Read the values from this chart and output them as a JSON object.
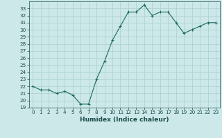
{
  "x": [
    0,
    1,
    2,
    3,
    4,
    5,
    6,
    7,
    8,
    9,
    10,
    11,
    12,
    13,
    14,
    15,
    16,
    17,
    18,
    19,
    20,
    21,
    22,
    23
  ],
  "y": [
    22,
    21.5,
    21.5,
    21,
    21.3,
    20.8,
    19.5,
    19.5,
    23,
    25.5,
    28.5,
    30.5,
    32.5,
    32.5,
    33.5,
    32,
    32.5,
    32.5,
    31,
    29.5,
    30,
    30.5,
    31,
    31
  ],
  "xlabel": "Humidex (Indice chaleur)",
  "ylim": [
    19,
    34
  ],
  "xlim": [
    -0.5,
    23.5
  ],
  "yticks": [
    19,
    20,
    21,
    22,
    23,
    24,
    25,
    26,
    27,
    28,
    29,
    30,
    31,
    32,
    33
  ],
  "xticks": [
    0,
    1,
    2,
    3,
    4,
    5,
    6,
    7,
    8,
    9,
    10,
    11,
    12,
    13,
    14,
    15,
    16,
    17,
    18,
    19,
    20,
    21,
    22,
    23
  ],
  "line_color": "#1a6b5a",
  "marker": "+",
  "bg_color": "#cce8e8",
  "grid_color": "#aacfcf",
  "text_color": "#1a4a4a",
  "label_fontsize": 6.5,
  "tick_fontsize": 5.2
}
